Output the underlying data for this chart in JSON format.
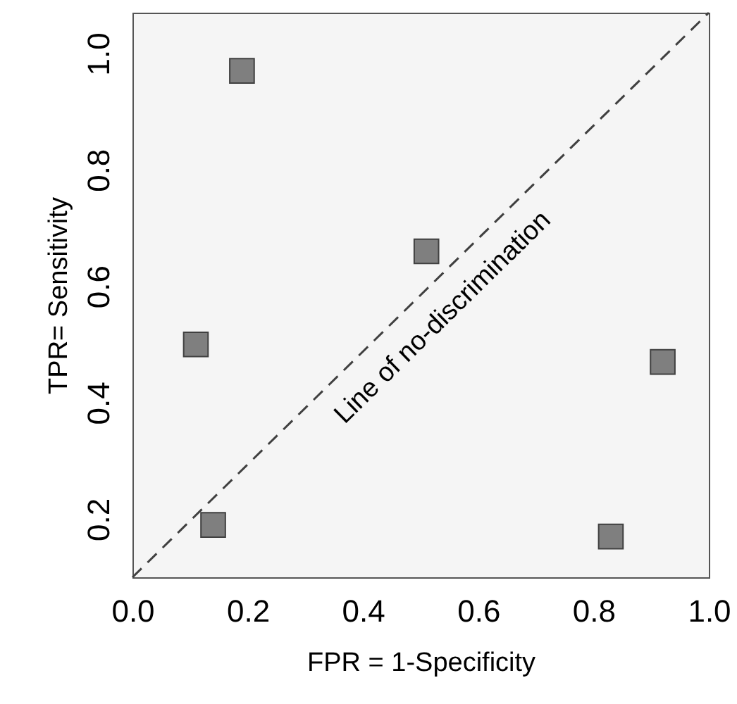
{
  "chart_data": {
    "type": "scatter",
    "xlabel": "FPR = 1-Specificity",
    "ylabel": "TPR= Sensitivity",
    "xlim": [
      0,
      1
    ],
    "ylim": [
      0.1,
      1.07
    ],
    "xticks": [
      {
        "value": 0,
        "label": "0.0"
      },
      0.2,
      0.4,
      0.6,
      0.8,
      {
        "value": 1,
        "label": "1.0"
      }
    ],
    "yticks": [
      0.2,
      0.4,
      0.6,
      0.8,
      {
        "value": 1,
        "label": "1.0"
      }
    ],
    "grid": false,
    "marker": "square",
    "series": [
      {
        "type": "scatter",
        "color": "#7f7f7f",
        "x": [
          0.19,
          0.51,
          0.11,
          0.92,
          0.14,
          0.83
        ],
        "values": [
          0.97,
          0.66,
          0.5,
          0.47,
          0.19,
          0.17
        ]
      },
      {
        "type": "line",
        "name": "Line of no-discrimination",
        "color": "#404040",
        "line_style": "dashed",
        "marker": "none",
        "x": [
          0,
          1
        ],
        "values": [
          0.1,
          1.07
        ]
      }
    ]
  }
}
